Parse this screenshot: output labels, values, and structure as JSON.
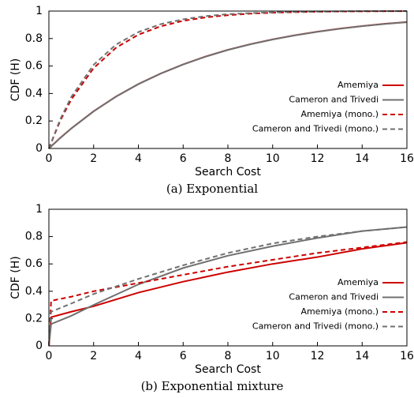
{
  "chart_data": [
    {
      "type": "line",
      "caption": "(a) Exponential",
      "xlabel": "Search Cost",
      "ylabel": "CDF (H)",
      "x": [
        0,
        0.5,
        1,
        2,
        3,
        4,
        5,
        6,
        7,
        8,
        9,
        10,
        11,
        12,
        13,
        14,
        15,
        16
      ],
      "xlim": [
        0,
        16
      ],
      "ylim": [
        0,
        1
      ],
      "xticks": [
        0,
        2,
        4,
        6,
        8,
        10,
        12,
        14,
        16
      ],
      "yticks": [
        0,
        0.2,
        0.4,
        0.6,
        0.8,
        1
      ],
      "grid": false,
      "legend": "lower right",
      "series": [
        {
          "name": "Amemiya",
          "color": "#cc0000",
          "linestyle": "solid",
          "values": [
            0,
            0.076,
            0.146,
            0.271,
            0.378,
            0.469,
            0.546,
            0.612,
            0.669,
            0.718,
            0.759,
            0.794,
            0.824,
            0.85,
            0.872,
            0.891,
            0.907,
            0.92
          ]
        },
        {
          "name": "Cameron and Trivedi",
          "color": "#707070",
          "linestyle": "solid",
          "values": [
            0,
            0.075,
            0.145,
            0.27,
            0.377,
            0.468,
            0.545,
            0.611,
            0.668,
            0.717,
            0.758,
            0.793,
            0.823,
            0.849,
            0.871,
            0.89,
            0.906,
            0.919
          ]
        },
        {
          "name": "Amemiya (mono.)",
          "color": "#cc0000",
          "linestyle": "dashed",
          "values": [
            0,
            0.2,
            0.356,
            0.585,
            0.733,
            0.828,
            0.889,
            0.929,
            0.954,
            0.97,
            0.981,
            0.988,
            0.992,
            0.995,
            0.997,
            0.998,
            0.999,
            0.999
          ]
        },
        {
          "name": "Cameron and Trivedi (mono.)",
          "color": "#707070",
          "linestyle": "dashed",
          "values": [
            0,
            0.21,
            0.375,
            0.609,
            0.756,
            0.847,
            0.905,
            0.94,
            0.963,
            0.977,
            0.985,
            0.991,
            0.994,
            0.996,
            0.998,
            0.999,
            0.999,
            1
          ]
        }
      ]
    },
    {
      "type": "line",
      "caption": "(b) Exponential mixture",
      "xlabel": "Search Cost",
      "ylabel": "CDF (H)",
      "x": [
        0,
        0.1,
        1,
        2,
        4,
        6,
        8,
        10,
        12,
        14,
        16
      ],
      "xlim": [
        0,
        16
      ],
      "ylim": [
        0,
        1
      ],
      "xticks": [
        0,
        2,
        4,
        6,
        8,
        10,
        12,
        14,
        16
      ],
      "yticks": [
        0,
        0.2,
        0.4,
        0.6,
        0.8,
        1
      ],
      "grid": false,
      "legend": "lower right",
      "series": [
        {
          "name": "Amemiya",
          "color": "#cc0000",
          "linestyle": "solid",
          "values": [
            0,
            0.21,
            0.25,
            0.29,
            0.39,
            0.47,
            0.54,
            0.6,
            0.65,
            0.71,
            0.755
          ]
        },
        {
          "name": "Cameron and Trivedi",
          "color": "#707070",
          "linestyle": "solid",
          "values": [
            0,
            0.16,
            0.22,
            0.3,
            0.45,
            0.57,
            0.66,
            0.73,
            0.79,
            0.84,
            0.87
          ]
        },
        {
          "name": "Amemiya (mono.)",
          "color": "#cc0000",
          "linestyle": "dashed",
          "values": [
            0,
            0.33,
            0.36,
            0.4,
            0.46,
            0.52,
            0.58,
            0.63,
            0.68,
            0.72,
            0.76
          ]
        },
        {
          "name": "Cameron and Trivedi (mono.)",
          "color": "#707070",
          "linestyle": "dashed",
          "values": [
            0,
            0.25,
            0.31,
            0.38,
            0.49,
            0.59,
            0.68,
            0.75,
            0.8,
            0.84,
            0.87
          ]
        }
      ]
    }
  ]
}
